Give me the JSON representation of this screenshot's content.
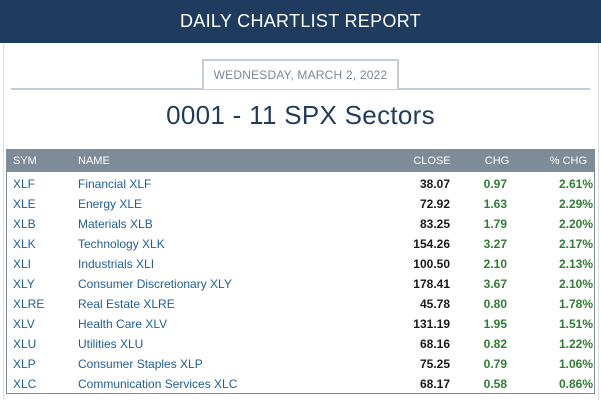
{
  "banner": {
    "title": "DAILY CHARTLIST REPORT"
  },
  "report": {
    "date": "WEDNESDAY, MARCH 2, 2022",
    "title": "0001 - 11 SPX Sectors"
  },
  "table": {
    "headers": {
      "sym": "SYM",
      "name": "NAME",
      "close": "CLOSE",
      "chg": "CHG",
      "pct": "% CHG"
    },
    "rows": [
      {
        "sym": "XLF",
        "name": "Financial XLF",
        "close": "38.07",
        "chg": "0.97",
        "pct": "2.61%"
      },
      {
        "sym": "XLE",
        "name": "Energy XLE",
        "close": "72.92",
        "chg": "1.63",
        "pct": "2.29%"
      },
      {
        "sym": "XLB",
        "name": "Materials XLB",
        "close": "83.25",
        "chg": "1.79",
        "pct": "2.20%"
      },
      {
        "sym": "XLK",
        "name": "Technology XLK",
        "close": "154.26",
        "chg": "3.27",
        "pct": "2.17%"
      },
      {
        "sym": "XLI",
        "name": "Industrials XLI",
        "close": "100.50",
        "chg": "2.10",
        "pct": "2.13%"
      },
      {
        "sym": "XLY",
        "name": "Consumer Discretionary XLY",
        "close": "178.41",
        "chg": "3.67",
        "pct": "2.10%"
      },
      {
        "sym": "XLRE",
        "name": "Real Estate XLRE",
        "close": "45.78",
        "chg": "0.80",
        "pct": "1.78%"
      },
      {
        "sym": "XLV",
        "name": "Health Care XLV",
        "close": "131.19",
        "chg": "1.95",
        "pct": "1.51%"
      },
      {
        "sym": "XLU",
        "name": "Utilities XLU",
        "close": "68.16",
        "chg": "0.82",
        "pct": "1.22%"
      },
      {
        "sym": "XLP",
        "name": "Consumer Staples XLP",
        "close": "75.25",
        "chg": "0.79",
        "pct": "1.06%"
      },
      {
        "sym": "XLC",
        "name": "Communication Services XLC",
        "close": "68.17",
        "chg": "0.58",
        "pct": "0.86%"
      }
    ]
  },
  "colors": {
    "banner": "#1f3c5f",
    "header_row": "#7e8b99",
    "link": "#1f5d99",
    "positive": "#2e7d32"
  }
}
